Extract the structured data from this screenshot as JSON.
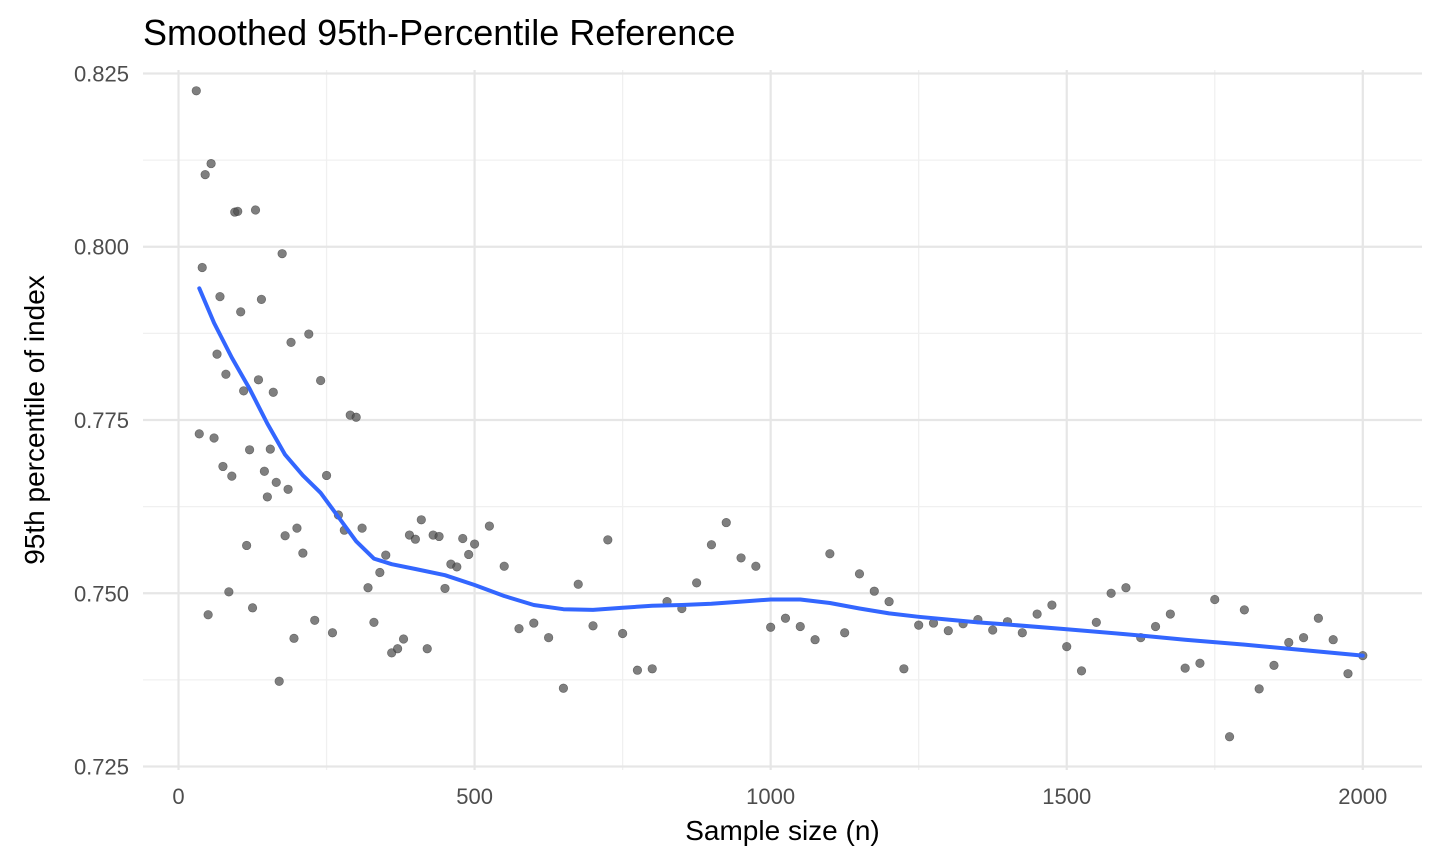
{
  "chart_data": {
    "type": "scatter",
    "title": "Smoothed 95th-Percentile Reference",
    "xlabel": "Sample size (n)",
    "ylabel": "95th percentile of index",
    "xlim": [
      -60,
      2100
    ],
    "ylim": [
      0.7245,
      0.8255
    ],
    "xticks": [
      0,
      500,
      1000,
      1500,
      2000
    ],
    "xtick_labels": [
      "0",
      "500",
      "1000",
      "1500",
      "2000"
    ],
    "yticks": [
      0.725,
      0.75,
      0.775,
      0.8,
      0.825
    ],
    "ytick_labels": [
      "0.725",
      "0.750",
      "0.775",
      "0.800",
      "0.825"
    ],
    "grid": true,
    "legend": "none",
    "colors": {
      "points": "#4d4d4d",
      "smooth_line": "#3366ff",
      "grid": "#e6e6e6"
    },
    "series": [
      {
        "kind": "points",
        "points": [
          [
            30,
            0.8225
          ],
          [
            35,
            0.773
          ],
          [
            40,
            0.797
          ],
          [
            45,
            0.8104
          ],
          [
            50,
            0.7469
          ],
          [
            55,
            0.812
          ],
          [
            60,
            0.7724
          ],
          [
            65,
            0.7845
          ],
          [
            70,
            0.7928
          ],
          [
            75,
            0.7683
          ],
          [
            80,
            0.7816
          ],
          [
            85,
            0.7502
          ],
          [
            90,
            0.7669
          ],
          [
            95,
            0.805
          ],
          [
            100,
            0.8051
          ],
          [
            105,
            0.7906
          ],
          [
            110,
            0.7792
          ],
          [
            115,
            0.7569
          ],
          [
            120,
            0.7707
          ],
          [
            125,
            0.7479
          ],
          [
            130,
            0.8053
          ],
          [
            135,
            0.7808
          ],
          [
            140,
            0.7924
          ],
          [
            145,
            0.7676
          ],
          [
            150,
            0.7639
          ],
          [
            155,
            0.7708
          ],
          [
            160,
            0.779
          ],
          [
            165,
            0.766
          ],
          [
            170,
            0.7373
          ],
          [
            175,
            0.799
          ],
          [
            180,
            0.7583
          ],
          [
            185,
            0.765
          ],
          [
            190,
            0.7862
          ],
          [
            195,
            0.7435
          ],
          [
            200,
            0.7594
          ],
          [
            210,
            0.7558
          ],
          [
            220,
            0.7874
          ],
          [
            230,
            0.7461
          ],
          [
            240,
            0.7807
          ],
          [
            250,
            0.767
          ],
          [
            260,
            0.7443
          ],
          [
            270,
            0.7613
          ],
          [
            280,
            0.7591
          ],
          [
            290,
            0.7757
          ],
          [
            300,
            0.7754
          ],
          [
            310,
            0.7594
          ],
          [
            320,
            0.7508
          ],
          [
            330,
            0.7458
          ],
          [
            340,
            0.753
          ],
          [
            350,
            0.7555
          ],
          [
            360,
            0.7414
          ],
          [
            370,
            0.742
          ],
          [
            380,
            0.7434
          ],
          [
            390,
            0.7584
          ],
          [
            400,
            0.7578
          ],
          [
            410,
            0.7606
          ],
          [
            420,
            0.742
          ],
          [
            430,
            0.7584
          ],
          [
            440,
            0.7582
          ],
          [
            450,
            0.7507
          ],
          [
            460,
            0.7542
          ],
          [
            470,
            0.7538
          ],
          [
            480,
            0.7579
          ],
          [
            490,
            0.7556
          ],
          [
            500,
            0.7571
          ],
          [
            525,
            0.7597
          ],
          [
            550,
            0.7539
          ],
          [
            575,
            0.7449
          ],
          [
            600,
            0.7457
          ],
          [
            625,
            0.7436
          ],
          [
            650,
            0.7363
          ],
          [
            675,
            0.7513
          ],
          [
            700,
            0.7453
          ],
          [
            725,
            0.7577
          ],
          [
            750,
            0.7442
          ],
          [
            775,
            0.7389
          ],
          [
            800,
            0.7391
          ],
          [
            825,
            0.7488
          ],
          [
            850,
            0.7478
          ],
          [
            875,
            0.7515
          ],
          [
            900,
            0.757
          ],
          [
            925,
            0.7602
          ],
          [
            950,
            0.7551
          ],
          [
            975,
            0.7539
          ],
          [
            1000,
            0.7451
          ],
          [
            1025,
            0.7464
          ],
          [
            1050,
            0.7452
          ],
          [
            1075,
            0.7433
          ],
          [
            1100,
            0.7557
          ],
          [
            1125,
            0.7443
          ],
          [
            1150,
            0.7528
          ],
          [
            1175,
            0.7503
          ],
          [
            1200,
            0.7488
          ],
          [
            1225,
            0.7391
          ],
          [
            1250,
            0.7454
          ],
          [
            1275,
            0.7457
          ],
          [
            1300,
            0.7446
          ],
          [
            1325,
            0.7456
          ],
          [
            1350,
            0.7462
          ],
          [
            1375,
            0.7447
          ],
          [
            1400,
            0.7459
          ],
          [
            1425,
            0.7443
          ],
          [
            1450,
            0.747
          ],
          [
            1475,
            0.7483
          ],
          [
            1500,
            0.7423
          ],
          [
            1525,
            0.7388
          ],
          [
            1550,
            0.7458
          ],
          [
            1575,
            0.75
          ],
          [
            1600,
            0.7508
          ],
          [
            1625,
            0.7436
          ],
          [
            1650,
            0.7452
          ],
          [
            1675,
            0.747
          ],
          [
            1700,
            0.7392
          ],
          [
            1725,
            0.7399
          ],
          [
            1750,
            0.7491
          ],
          [
            1775,
            0.7293
          ],
          [
            1800,
            0.7476
          ],
          [
            1825,
            0.7362
          ],
          [
            1850,
            0.7396
          ],
          [
            1875,
            0.7429
          ],
          [
            1900,
            0.7436
          ],
          [
            1925,
            0.7464
          ],
          [
            1950,
            0.7433
          ],
          [
            1975,
            0.7384
          ],
          [
            2000,
            0.741
          ]
        ]
      },
      {
        "kind": "smooth",
        "points": [
          [
            35,
            0.794
          ],
          [
            60,
            0.789
          ],
          [
            90,
            0.784
          ],
          [
            120,
            0.7795
          ],
          [
            150,
            0.7745
          ],
          [
            180,
            0.77
          ],
          [
            210,
            0.767
          ],
          [
            240,
            0.7645
          ],
          [
            270,
            0.761
          ],
          [
            300,
            0.7575
          ],
          [
            330,
            0.755
          ],
          [
            360,
            0.7542
          ],
          [
            400,
            0.7535
          ],
          [
            450,
            0.7526
          ],
          [
            500,
            0.7512
          ],
          [
            550,
            0.7496
          ],
          [
            600,
            0.7483
          ],
          [
            650,
            0.7477
          ],
          [
            700,
            0.7476
          ],
          [
            750,
            0.7479
          ],
          [
            800,
            0.7482
          ],
          [
            850,
            0.7483
          ],
          [
            900,
            0.7485
          ],
          [
            950,
            0.7488
          ],
          [
            1000,
            0.7491
          ],
          [
            1050,
            0.7491
          ],
          [
            1100,
            0.7486
          ],
          [
            1150,
            0.7478
          ],
          [
            1200,
            0.7471
          ],
          [
            1250,
            0.7466
          ],
          [
            1300,
            0.7462
          ],
          [
            1350,
            0.7458
          ],
          [
            1400,
            0.7455
          ],
          [
            1500,
            0.7448
          ],
          [
            1600,
            0.7441
          ],
          [
            1700,
            0.7433
          ],
          [
            1800,
            0.7426
          ],
          [
            1900,
            0.7418
          ],
          [
            2000,
            0.741
          ]
        ]
      }
    ]
  }
}
